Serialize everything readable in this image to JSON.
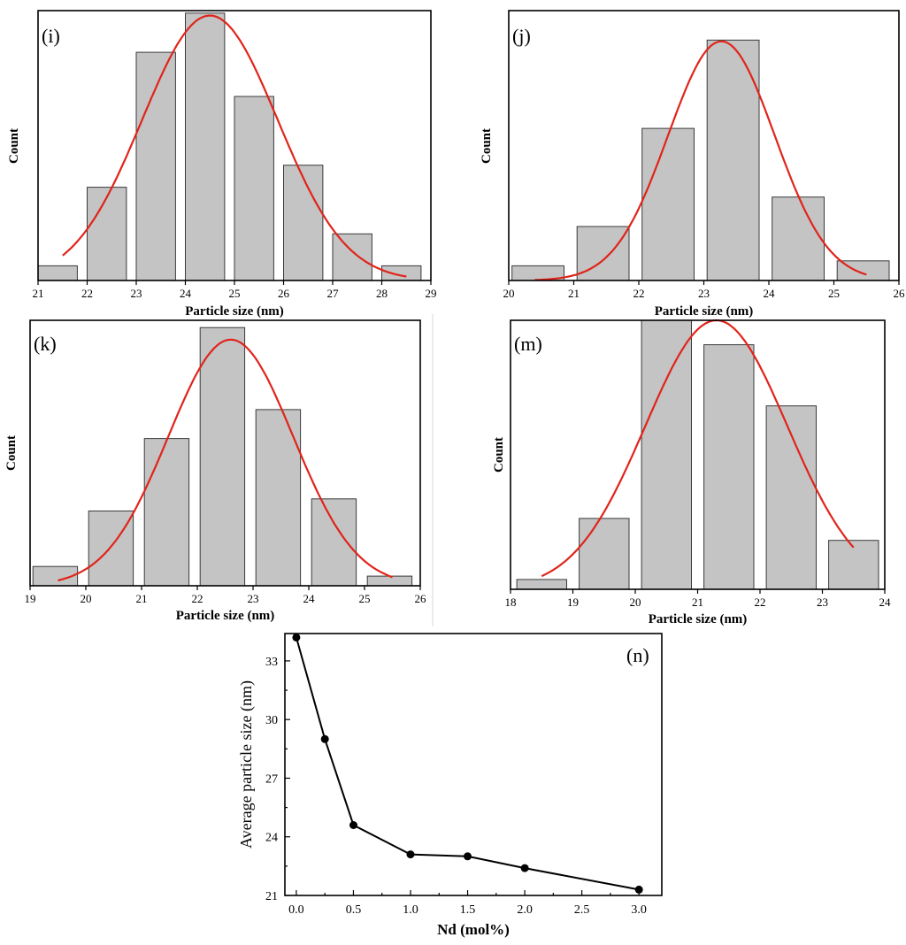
{
  "chart_data": [
    {
      "id": "i",
      "type": "bar",
      "panel_label": "(i)",
      "xlabel": "Particle size (nm)",
      "ylabel": "Count",
      "xlim": [
        21,
        29
      ],
      "ylim": [
        0,
        11
      ],
      "x_ticks": [
        21,
        22,
        23,
        24,
        25,
        26,
        27,
        28,
        29
      ],
      "bin_width": 1,
      "bins": [
        {
          "start": 21.0,
          "end": 21.8,
          "value": 0.6
        },
        {
          "start": 22.0,
          "end": 22.8,
          "value": 3.8
        },
        {
          "start": 23.0,
          "end": 23.8,
          "value": 9.3
        },
        {
          "start": 24.0,
          "end": 24.8,
          "value": 10.9
        },
        {
          "start": 25.0,
          "end": 25.8,
          "value": 7.5
        },
        {
          "start": 26.0,
          "end": 26.8,
          "value": 4.7
        },
        {
          "start": 27.0,
          "end": 27.8,
          "value": 1.9
        },
        {
          "start": 28.0,
          "end": 28.8,
          "value": 0.6
        }
      ],
      "fit": {
        "type": "gaussian",
        "mean": 24.5,
        "sigma": 1.38,
        "amplitude": 10.8,
        "x_range": [
          21.5,
          28.5
        ]
      }
    },
    {
      "id": "j",
      "type": "bar",
      "panel_label": "(j)",
      "xlabel": "Particle size (nm)",
      "ylabel": "Count",
      "xlim": [
        20,
        26
      ],
      "ylim": [
        0,
        11
      ],
      "x_ticks": [
        20,
        21,
        22,
        23,
        24,
        25,
        26
      ],
      "bin_width": 1,
      "bins": [
        {
          "start": 20.05,
          "end": 20.85,
          "value": 0.6
        },
        {
          "start": 21.05,
          "end": 21.85,
          "value": 2.2
        },
        {
          "start": 22.05,
          "end": 22.85,
          "value": 6.2
        },
        {
          "start": 23.05,
          "end": 23.85,
          "value": 9.8
        },
        {
          "start": 24.05,
          "end": 24.85,
          "value": 3.4
        },
        {
          "start": 25.05,
          "end": 25.85,
          "value": 0.8
        }
      ],
      "fit": {
        "type": "gaussian",
        "mean": 23.27,
        "sigma": 0.82,
        "amplitude": 9.75,
        "x_range": [
          20.4,
          25.5
        ]
      }
    },
    {
      "id": "k",
      "type": "bar",
      "panel_label": "(k)",
      "xlabel": "Particle size (nm)",
      "ylabel": "Count",
      "xlim": [
        19,
        26
      ],
      "ylim": [
        0,
        11
      ],
      "x_ticks": [
        19,
        20,
        21,
        22,
        23,
        24,
        25,
        26
      ],
      "bin_width": 1,
      "bins": [
        {
          "start": 19.05,
          "end": 19.85,
          "value": 0.8
        },
        {
          "start": 20.05,
          "end": 20.85,
          "value": 3.1
        },
        {
          "start": 21.05,
          "end": 21.85,
          "value": 6.1
        },
        {
          "start": 22.05,
          "end": 22.85,
          "value": 10.7
        },
        {
          "start": 23.05,
          "end": 23.85,
          "value": 7.3
        },
        {
          "start": 24.05,
          "end": 24.85,
          "value": 3.6
        },
        {
          "start": 25.05,
          "end": 25.85,
          "value": 0.4
        }
      ],
      "fit": {
        "type": "gaussian",
        "mean": 22.6,
        "sigma": 1.12,
        "amplitude": 10.2,
        "x_range": [
          19.5,
          25.5
        ]
      }
    },
    {
      "id": "m",
      "type": "bar",
      "panel_label": "(m)",
      "xlabel": "Particle size (nm)",
      "ylabel": "Count",
      "xlim": [
        18,
        24
      ],
      "ylim": [
        0,
        11
      ],
      "x_ticks": [
        18,
        19,
        20,
        21,
        22,
        23,
        24
      ],
      "bin_width": 1,
      "bins": [
        {
          "start": 18.1,
          "end": 18.9,
          "value": 0.4
        },
        {
          "start": 19.1,
          "end": 19.9,
          "value": 2.9
        },
        {
          "start": 20.1,
          "end": 20.9,
          "value": 11.0
        },
        {
          "start": 21.1,
          "end": 21.9,
          "value": 10.0
        },
        {
          "start": 22.1,
          "end": 22.9,
          "value": 7.5
        },
        {
          "start": 23.1,
          "end": 23.9,
          "value": 2.0
        }
      ],
      "fit": {
        "type": "gaussian",
        "mean": 21.3,
        "sigma": 1.14,
        "amplitude": 11.0,
        "x_range": [
          18.5,
          23.5
        ]
      }
    },
    {
      "id": "n",
      "type": "line",
      "panel_label": "(n)",
      "xlabel": "Nd (mol%)",
      "ylabel": "Average particle size (nm)",
      "xlim": [
        -0.1,
        3.2
      ],
      "ylim": [
        21,
        34.4
      ],
      "x_ticks": [
        "0.0",
        "0.5",
        "1.0",
        "1.5",
        "2.0",
        "2.5",
        "3.0"
      ],
      "y_ticks": [
        "21",
        "24",
        "27",
        "30",
        "33"
      ],
      "x": [
        0,
        0.25,
        0.5,
        1.0,
        1.5,
        2.0,
        3.0
      ],
      "y": [
        34.2,
        29.0,
        24.6,
        23.1,
        23.0,
        22.4,
        21.3
      ],
      "marker": "circle",
      "legend": "none"
    }
  ]
}
